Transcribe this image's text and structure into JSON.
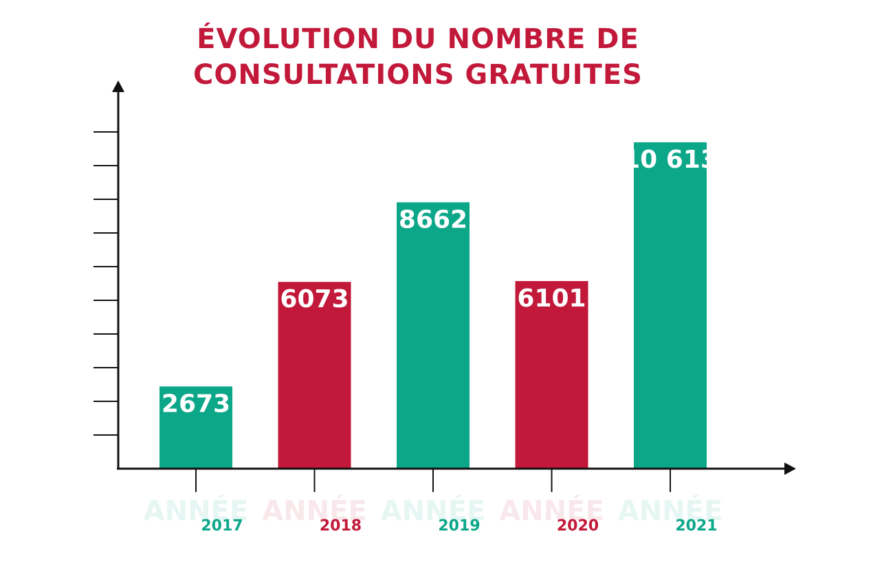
{
  "chart_data": {
    "type": "bar",
    "title_lines": [
      "ÉVOLUTION DU NOMBRE DE",
      "CONSULTATIONS GRATUITES"
    ],
    "category_prefix": "ANNÉE",
    "categories": [
      "2017",
      "2018",
      "2019",
      "2020",
      "2021"
    ],
    "values": [
      2673,
      6073,
      8662,
      6101,
      10613
    ],
    "value_labels": [
      "2673",
      "6073",
      "8662",
      "6101",
      "10 613"
    ],
    "bar_colors": [
      "#0ca789",
      "#c2193a",
      "#0ca789",
      "#c2193a",
      "#0ca789"
    ],
    "ylim": [
      0,
      12000
    ],
    "y_tick_count": 10,
    "grid": false,
    "axis_color": "#111111",
    "title_color": "#c2193a"
  }
}
